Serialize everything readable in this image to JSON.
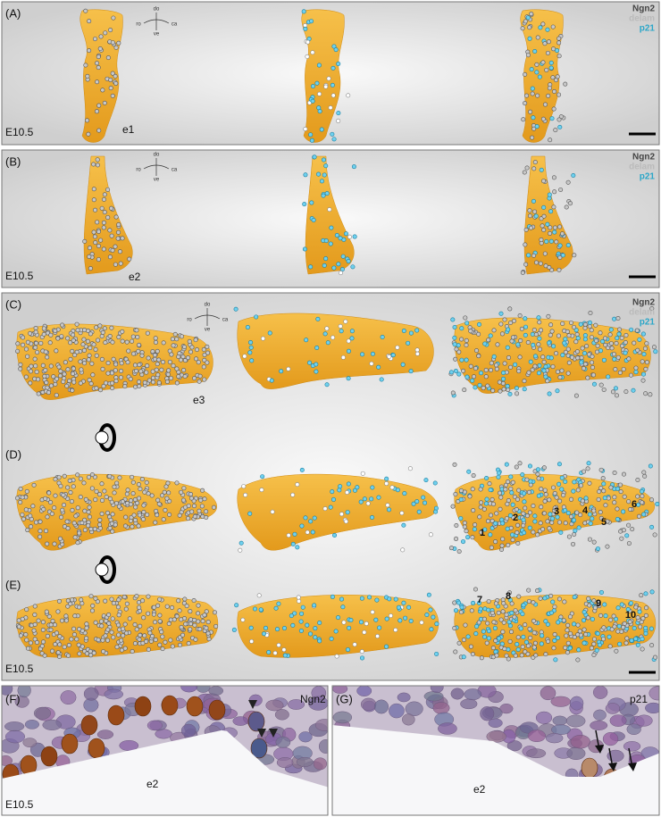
{
  "panels": [
    {
      "label": "(A)",
      "stage": "E10.5",
      "embryo": "e1"
    },
    {
      "label": "(B)",
      "stage": "E10.5",
      "embryo": "e2"
    },
    {
      "label": "(C)",
      "embryo": "e3"
    },
    {
      "label": "(D)",
      "landmarks": [
        "1",
        "2",
        "3",
        "4",
        "5",
        "6"
      ]
    },
    {
      "label": "(E)",
      "stage": "E10.5",
      "landmarks": [
        "7",
        "8",
        "9",
        "10"
      ]
    },
    {
      "label": "(F)",
      "stage": "E10.5",
      "embryo": "e2",
      "marker": "Ngn2"
    },
    {
      "label": "(G)",
      "embryo": "e2",
      "marker": "p21"
    }
  ],
  "legends": [
    {
      "items": [
        "Ngn2",
        "delam",
        "p21"
      ]
    },
    {
      "items": [
        "Ngn2",
        "delam",
        "p21"
      ]
    },
    {
      "items": [
        "Ngn2",
        "delam",
        "p21"
      ]
    }
  ],
  "compasses": [
    {
      "up": "do",
      "down": "ve",
      "left": "ro",
      "right": "ca"
    },
    {
      "up": "do",
      "down": "ve",
      "left": "ro",
      "right": "ca"
    },
    {
      "up": "do",
      "down": "ve",
      "left": "ro",
      "right": "ca"
    }
  ]
}
